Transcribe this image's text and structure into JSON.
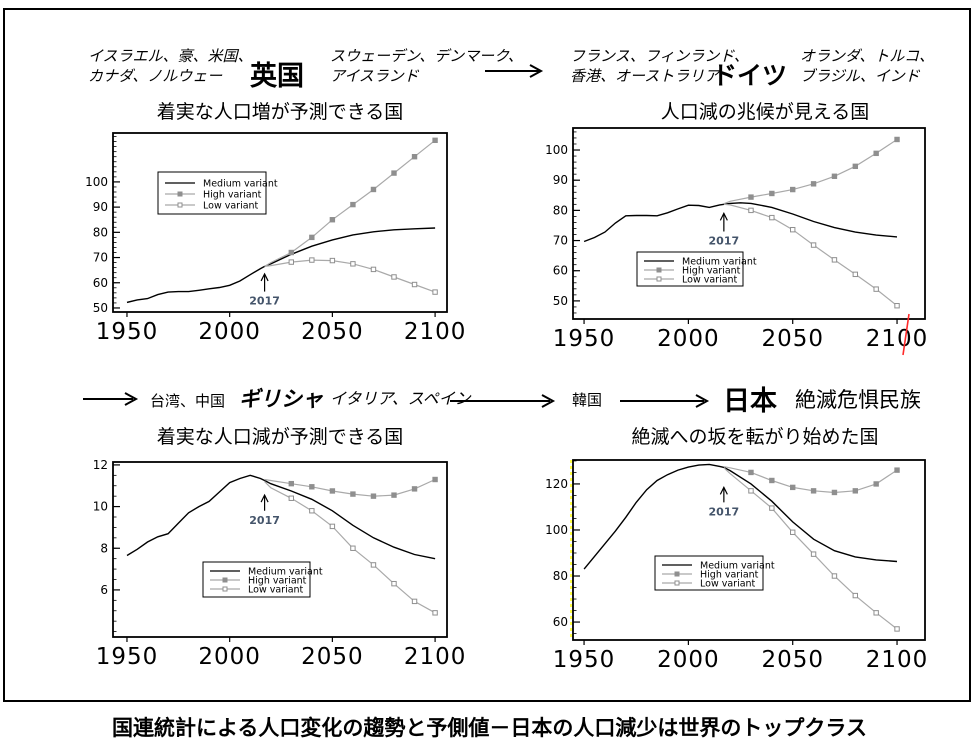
{
  "colors": {
    "medium": "#000000",
    "variant_line": "#a9a9a9",
    "marker_fill": "#8f8f8f",
    "annotation": "#44546A",
    "red_mark": "#ff2a2a",
    "yellow_mark": "#ffff33",
    "axis": "#000000"
  },
  "header_top": {
    "left_list": [
      "イスラエル、豪、米国、",
      "カナダ、ノルウェー"
    ],
    "country_left": "英国",
    "mid_list": [
      "スウェーデン、デンマーク、",
      "アイスランド"
    ],
    "right_list": [
      "フランス、フィンランド、",
      "香港、オーストラリア"
    ],
    "country_right": "ドイツ",
    "far_right_list": [
      "オランダ、トルコ、",
      "ブラジル、インド"
    ],
    "subtitle_left": "着実な人口増が予測できる国",
    "subtitle_right": "人口減の兆候が見える国"
  },
  "header_bottom": {
    "list1": "台湾、中国",
    "country1": "ギリシャ",
    "list2": "イタリア、スペイン",
    "country2": "韓国",
    "country3": "日本",
    "note": "絶滅危惧民族",
    "subtitle_left": "着実な人口減が予測できる国",
    "subtitle_right": "絶滅への坂を転がり始めた国"
  },
  "caption": "国連統計による人口変化の趨勢と予側値－日本の人口減少は世界のトップクラス",
  "chart_data": [
    {
      "type": "line",
      "country": "英国",
      "title": "着実な人口増が予測できる国",
      "xlabel": "",
      "ylabel": "",
      "xlim": [
        1943.2,
        2105.8
      ],
      "ylim": [
        48.4,
        119.4
      ],
      "xticks": [
        1950,
        2000,
        2050,
        2100
      ],
      "yticks": [
        50,
        60,
        70,
        80,
        90,
        100
      ],
      "ytick_minor_step": 2,
      "grid": false,
      "legend_labels": [
        "Medium variant",
        "High variant",
        "Low variant"
      ],
      "annotation": {
        "label": "2017",
        "year": 2017,
        "tip_value": 63.5,
        "tail_value": 56.5
      },
      "series": [
        {
          "name": "Medium variant",
          "style": "medium",
          "points": [
            [
              1950,
              52.2
            ],
            [
              1955,
              53.2
            ],
            [
              1960,
              53.7
            ],
            [
              1965,
              55.3
            ],
            [
              1970,
              56.3
            ],
            [
              1975,
              56.5
            ],
            [
              1980,
              56.5
            ],
            [
              1985,
              57.0
            ],
            [
              1990,
              57.6
            ],
            [
              1995,
              58.1
            ],
            [
              2000,
              59.0
            ],
            [
              2005,
              60.7
            ],
            [
              2010,
              63.2
            ],
            [
              2015,
              65.6
            ],
            [
              2017,
              66.5
            ],
            [
              2020,
              67.5
            ],
            [
              2030,
              71.3
            ],
            [
              2040,
              74.5
            ],
            [
              2050,
              77.0
            ],
            [
              2060,
              79.0
            ],
            [
              2070,
              80.2
            ],
            [
              2080,
              81.0
            ],
            [
              2090,
              81.4
            ],
            [
              2100,
              81.7
            ]
          ]
        },
        {
          "name": "High variant",
          "style": "high",
          "points": [
            [
              2017,
              66.5
            ],
            [
              2020,
              68.0
            ],
            [
              2030,
              72.0
            ],
            [
              2040,
              78.0
            ],
            [
              2050,
              85.0
            ],
            [
              2060,
              91.0
            ],
            [
              2070,
              97.0
            ],
            [
              2080,
              103.5
            ],
            [
              2090,
              110.0
            ],
            [
              2100,
              116.5
            ]
          ]
        },
        {
          "name": "Low variant",
          "style": "low",
          "points": [
            [
              2017,
              66.5
            ],
            [
              2020,
              66.8
            ],
            [
              2030,
              68.2
            ],
            [
              2040,
              69.0
            ],
            [
              2050,
              68.8
            ],
            [
              2060,
              67.5
            ],
            [
              2070,
              65.3
            ],
            [
              2080,
              62.3
            ],
            [
              2090,
              59.3
            ],
            [
              2100,
              56.3
            ]
          ]
        }
      ]
    },
    {
      "type": "line",
      "country": "ドイツ",
      "title": "人口減の兆候が見える国",
      "xlabel": "",
      "ylabel": "",
      "xlim": [
        1944.7,
        2113.4
      ],
      "ylim": [
        44.0,
        107.3
      ],
      "xticks": [
        1950,
        2000,
        2050,
        2100
      ],
      "yticks": [
        50,
        60,
        70,
        80,
        90,
        100
      ],
      "ytick_minor_step": 2,
      "grid": false,
      "legend_labels": [
        "Medium variant",
        "High variant",
        "Low variant"
      ],
      "annotation": {
        "label": "2017",
        "year": 2017,
        "tip_value": 79.0,
        "tail_value": 73.0
      },
      "series": [
        {
          "name": "Medium variant",
          "style": "medium",
          "points": [
            [
              1950,
              69.7
            ],
            [
              1955,
              71.0
            ],
            [
              1960,
              72.8
            ],
            [
              1965,
              75.8
            ],
            [
              1970,
              78.2
            ],
            [
              1975,
              78.3
            ],
            [
              1980,
              78.3
            ],
            [
              1985,
              78.2
            ],
            [
              1990,
              79.2
            ],
            [
              1995,
              80.5
            ],
            [
              2000,
              81.7
            ],
            [
              2005,
              81.6
            ],
            [
              2010,
              81.0
            ],
            [
              2015,
              81.8
            ],
            [
              2020,
              82.3
            ],
            [
              2025,
              82.5
            ],
            [
              2030,
              82.3
            ],
            [
              2040,
              81.0
            ],
            [
              2050,
              78.8
            ],
            [
              2060,
              76.3
            ],
            [
              2070,
              74.3
            ],
            [
              2080,
              72.8
            ],
            [
              2090,
              71.8
            ],
            [
              2100,
              71.2
            ]
          ]
        },
        {
          "name": "High variant",
          "style": "high",
          "points": [
            [
              2017,
              82.2
            ],
            [
              2020,
              83.0
            ],
            [
              2030,
              84.4
            ],
            [
              2040,
              85.6
            ],
            [
              2050,
              86.9
            ],
            [
              2060,
              88.8
            ],
            [
              2070,
              91.3
            ],
            [
              2080,
              94.6
            ],
            [
              2090,
              98.9
            ],
            [
              2100,
              103.5
            ]
          ]
        },
        {
          "name": "Low variant",
          "style": "low",
          "points": [
            [
              2017,
              82.0
            ],
            [
              2020,
              81.8
            ],
            [
              2030,
              80.0
            ],
            [
              2040,
              77.6
            ],
            [
              2050,
              73.6
            ],
            [
              2060,
              68.5
            ],
            [
              2070,
              63.6
            ],
            [
              2080,
              58.8
            ],
            [
              2090,
              53.9
            ],
            [
              2100,
              48.4
            ]
          ]
        }
      ]
    },
    {
      "type": "line",
      "country": "ギリシャ",
      "title": "着実な人口減が予測できる国",
      "xlabel": "",
      "ylabel": "",
      "xlim": [
        1943.2,
        2105.8
      ],
      "ylim": [
        3.74,
        12.14
      ],
      "xticks": [
        1950,
        2000,
        2050,
        2100
      ],
      "yticks": [
        6,
        8,
        10,
        12
      ],
      "ytick_minor_step": 0.5,
      "grid": false,
      "legend_labels": [
        "Medium variant",
        "High variant",
        "Low variant"
      ],
      "annotation": {
        "label": "2017",
        "year": 2017,
        "tip_value": 10.55,
        "tail_value": 9.8
      },
      "series": [
        {
          "name": "Medium variant",
          "style": "medium",
          "points": [
            [
              1950,
              7.65
            ],
            [
              1955,
              7.95
            ],
            [
              1960,
              8.3
            ],
            [
              1965,
              8.55
            ],
            [
              1970,
              8.7
            ],
            [
              1975,
              9.2
            ],
            [
              1980,
              9.7
            ],
            [
              1985,
              10.0
            ],
            [
              1990,
              10.25
            ],
            [
              1995,
              10.7
            ],
            [
              2000,
              11.15
            ],
            [
              2005,
              11.35
            ],
            [
              2010,
              11.5
            ],
            [
              2015,
              11.35
            ],
            [
              2017,
              11.25
            ],
            [
              2020,
              11.1
            ],
            [
              2030,
              10.75
            ],
            [
              2040,
              10.35
            ],
            [
              2050,
              9.8
            ],
            [
              2060,
              9.1
            ],
            [
              2070,
              8.5
            ],
            [
              2080,
              8.05
            ],
            [
              2090,
              7.7
            ],
            [
              2100,
              7.5
            ]
          ]
        },
        {
          "name": "High variant",
          "style": "high",
          "points": [
            [
              2017,
              11.3
            ],
            [
              2020,
              11.25
            ],
            [
              2030,
              11.1
            ],
            [
              2040,
              10.95
            ],
            [
              2050,
              10.75
            ],
            [
              2060,
              10.6
            ],
            [
              2070,
              10.5
            ],
            [
              2080,
              10.55
            ],
            [
              2090,
              10.85
            ],
            [
              2100,
              11.3
            ]
          ]
        },
        {
          "name": "Low variant",
          "style": "low",
          "points": [
            [
              2017,
              11.2
            ],
            [
              2020,
              10.9
            ],
            [
              2030,
              10.4
            ],
            [
              2040,
              9.8
            ],
            [
              2050,
              9.05
            ],
            [
              2060,
              8.0
            ],
            [
              2070,
              7.2
            ],
            [
              2080,
              6.3
            ],
            [
              2090,
              5.45
            ],
            [
              2100,
              4.9
            ]
          ]
        }
      ]
    },
    {
      "type": "line",
      "country": "日本",
      "title": "絶滅への坂を転がり始めた国",
      "xlabel": "",
      "ylabel": "",
      "xlim": [
        1944.7,
        2113.4
      ],
      "ylim": [
        52.2,
        130.4
      ],
      "xticks": [
        1950,
        2000,
        2050,
        2100
      ],
      "yticks": [
        60,
        80,
        100,
        120
      ],
      "ytick_minor_step": 5,
      "grid": false,
      "legend_labels": [
        "Medium variant",
        "High variant",
        "Low variant"
      ],
      "annotation": {
        "label": "2017",
        "year": 2017,
        "tip_value": 118.5,
        "tail_value": 112.0
      },
      "series": [
        {
          "name": "Medium variant",
          "style": "medium",
          "points": [
            [
              1950,
              83.0
            ],
            [
              1955,
              88.5
            ],
            [
              1960,
              94.0
            ],
            [
              1965,
              99.5
            ],
            [
              1970,
              105.5
            ],
            [
              1975,
              112.0
            ],
            [
              1980,
              117.5
            ],
            [
              1985,
              121.5
            ],
            [
              1990,
              124.0
            ],
            [
              1995,
              126.0
            ],
            [
              2000,
              127.3
            ],
            [
              2005,
              128.2
            ],
            [
              2010,
              128.5
            ],
            [
              2015,
              127.6
            ],
            [
              2017,
              127.2
            ],
            [
              2020,
              125.8
            ],
            [
              2030,
              120.0
            ],
            [
              2040,
              112.5
            ],
            [
              2050,
              103.5
            ],
            [
              2060,
              96.0
            ],
            [
              2070,
              91.0
            ],
            [
              2080,
              88.3
            ],
            [
              2090,
              87.0
            ],
            [
              2100,
              86.3
            ]
          ]
        },
        {
          "name": "High variant",
          "style": "high",
          "points": [
            [
              2017,
              127.5
            ],
            [
              2020,
              127.0
            ],
            [
              2030,
              125.0
            ],
            [
              2040,
              121.5
            ],
            [
              2050,
              118.5
            ],
            [
              2060,
              117.0
            ],
            [
              2070,
              116.3
            ],
            [
              2080,
              117.0
            ],
            [
              2090,
              120.0
            ],
            [
              2100,
              126.0
            ]
          ]
        },
        {
          "name": "Low variant",
          "style": "low",
          "points": [
            [
              2017,
              127.0
            ],
            [
              2020,
              124.5
            ],
            [
              2030,
              117.0
            ],
            [
              2040,
              109.5
            ],
            [
              2050,
              99.0
            ],
            [
              2060,
              89.5
            ],
            [
              2070,
              80.0
            ],
            [
              2080,
              71.5
            ],
            [
              2090,
              64.0
            ],
            [
              2100,
              57.0
            ]
          ]
        }
      ]
    }
  ]
}
